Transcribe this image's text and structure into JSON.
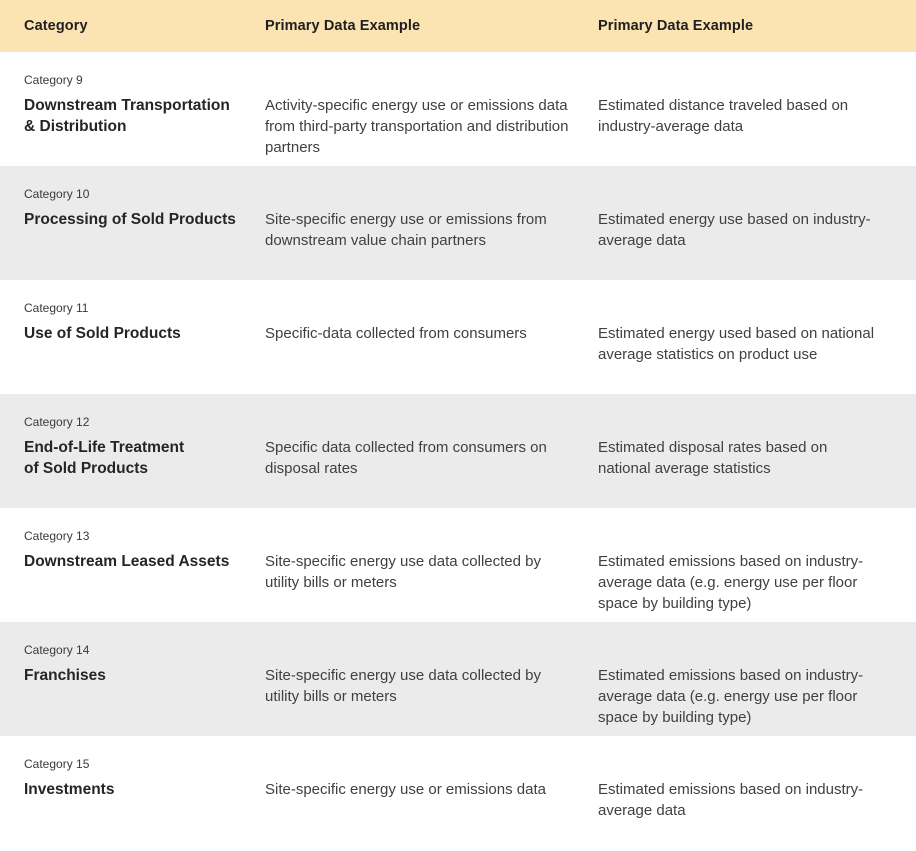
{
  "table": {
    "columns": [
      {
        "label": "Category"
      },
      {
        "label": "Primary Data Example"
      },
      {
        "label": "Primary Data Example"
      }
    ],
    "rows": [
      {
        "category_label": "Category 9",
        "category_name": "Downstream Transportation\n& Distribution",
        "example_1": "Activity-specific energy use or emissions data from third-party transportation and distribution partners",
        "example_2": "Estimated distance traveled based on industry-average data"
      },
      {
        "category_label": "Category 10",
        "category_name": "Processing of Sold Products",
        "example_1": "Site-specific energy use or emissions from downstream value chain partners",
        "example_2": "Estimated energy use based on industry-average data"
      },
      {
        "category_label": "Category 11",
        "category_name": "Use of Sold Products",
        "example_1": "Specific-data collected from consumers",
        "example_2": "Estimated energy used based on national average statistics on product use"
      },
      {
        "category_label": "Category 12",
        "category_name": "End-of-Life Treatment\nof Sold Products",
        "example_1": "Specific data collected from consumers on disposal rates",
        "example_2": "Estimated disposal rates based on national average statistics"
      },
      {
        "category_label": "Category 13",
        "category_name": "Downstream Leased Assets",
        "example_1": "Site-specific energy use data collected by utility bills or meters",
        "example_2": "Estimated emissions based on industry-average data (e.g. energy use per floor space by building type)"
      },
      {
        "category_label": "Category 14",
        "category_name": "Franchises",
        "example_1": "Site-specific energy use data collected by utility bills or meters",
        "example_2": "Estimated emissions based on industry-average data (e.g. energy use per floor space by building type)"
      },
      {
        "category_label": "Category 15",
        "category_name": "Investments",
        "example_1": "Site-specific energy use or emissions data",
        "example_2": "Estimated emissions based on industry-average data"
      }
    ]
  },
  "colors": {
    "header_background": "#fbe3b2",
    "alt_row_background": "#ebebeb",
    "row_background": "#ffffff",
    "heading_text": "#1f1f1f",
    "body_text": "#404040"
  }
}
